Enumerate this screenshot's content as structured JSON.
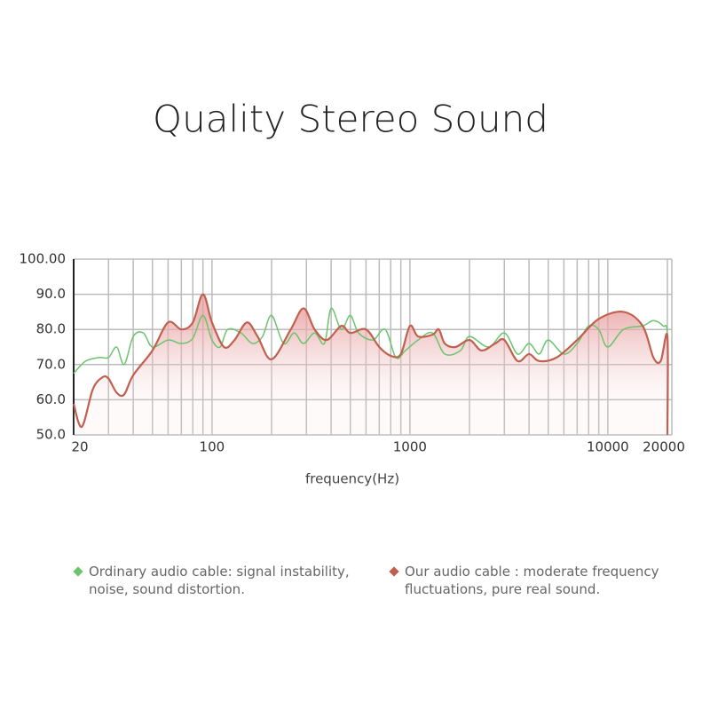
{
  "chart_data": {
    "type": "line",
    "title": "Quality Stereo Sound",
    "x_label": "frequency(Hz)",
    "log_x": true,
    "grid": true,
    "xlim": [
      20,
      20000
    ],
    "xticks": [
      20,
      100,
      1000,
      10000,
      20000
    ],
    "x_minor_grid": [
      30,
      40,
      50,
      60,
      70,
      80,
      90,
      200,
      300,
      400,
      500,
      600,
      700,
      800,
      900,
      2000,
      3000,
      4000,
      5000,
      6000,
      7000,
      8000,
      9000
    ],
    "ylim": [
      50,
      100
    ],
    "yticks": [
      {
        "value": 50,
        "label": "50.0"
      },
      {
        "value": 60,
        "label": "60.0"
      },
      {
        "value": 70,
        "label": "70.0"
      },
      {
        "value": 80,
        "label": "80.0"
      },
      {
        "value": 90,
        "label": "90.0"
      },
      {
        "value": 100,
        "label": "100.00"
      }
    ],
    "series": [
      {
        "name": "Ordinary audio cable: signal instability, noise, sound distortion.",
        "color": "#6cc46e",
        "x": [
          20,
          23,
          27,
          30,
          33,
          36,
          40,
          45,
          50,
          60,
          70,
          80,
          90,
          100,
          110,
          120,
          140,
          160,
          180,
          200,
          230,
          260,
          290,
          330,
          370,
          400,
          450,
          500,
          550,
          650,
          750,
          850,
          950,
          1100,
          1300,
          1500,
          1800,
          2000,
          2500,
          3000,
          3500,
          4000,
          4500,
          5000,
          6000,
          7000,
          8000,
          9000,
          10000,
          12000,
          15000,
          17000,
          19000,
          20000,
          20000
        ],
        "values": [
          67.5,
          71,
          72,
          72,
          75,
          70,
          78,
          79,
          75,
          77,
          76,
          77.5,
          84,
          77,
          75,
          80,
          79,
          76,
          78,
          84,
          76,
          79,
          76,
          79,
          76,
          86,
          80,
          84,
          79,
          77,
          80,
          72,
          74,
          77,
          79,
          73,
          74,
          78,
          75,
          79,
          73,
          76,
          73,
          77,
          73,
          76,
          81,
          80,
          75,
          80,
          81,
          82.5,
          81,
          78,
          50
        ]
      },
      {
        "name": "Our audio cable : moderate frequency fluctuations, pure real sound.",
        "color": "#c0604f",
        "x": [
          20,
          22,
          25,
          28,
          30,
          33,
          36,
          40,
          50,
          60,
          70,
          80,
          90,
          100,
          115,
          130,
          150,
          170,
          200,
          250,
          290,
          330,
          380,
          450,
          500,
          600,
          700,
          800,
          900,
          1000,
          1100,
          1300,
          1400,
          1500,
          1700,
          2000,
          2300,
          2700,
          3000,
          3500,
          4000,
          4500,
          5500,
          7000,
          9000,
          12000,
          15000,
          17000,
          18500,
          20000,
          20000
        ],
        "values": [
          58.8,
          52.3,
          63,
          66.4,
          66,
          62,
          61.5,
          67,
          74,
          82,
          80,
          82,
          90,
          82,
          75,
          77,
          82,
          78,
          71.5,
          80,
          86,
          80,
          77,
          81,
          79,
          80,
          75,
          72.5,
          73,
          81,
          78,
          78.5,
          80,
          76,
          75,
          77,
          74,
          76,
          77,
          71,
          73,
          71,
          72,
          77,
          83,
          85,
          81,
          72,
          71,
          78,
          50
        ]
      }
    ]
  }
}
